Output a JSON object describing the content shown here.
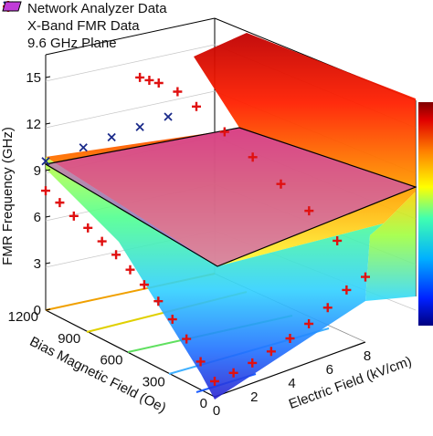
{
  "legend": {
    "network": "Network Analyzer Data",
    "xband": "X-Band FMR Data",
    "plane": "9.6 GHz Plane"
  },
  "axes": {
    "z_label": "FMR Frequency (GHz)",
    "y_label": "Bias Magnetic Field (Oe)",
    "x_label": "Electric Field (kV/cm)",
    "z_ticks": [
      "0",
      "3",
      "6",
      "9",
      "12",
      "15"
    ],
    "y_ticks": [
      "1200",
      "900",
      "600",
      "300",
      "0"
    ],
    "x_ticks": [
      "0",
      "2",
      "4",
      "6",
      "8"
    ]
  },
  "colors": {
    "network_marker": "#e01010",
    "xband_marker": "#1a2a8a",
    "plane_fill": "#c03cd8",
    "colorbar": [
      "#7a0000",
      "#e00000",
      "#ff8000",
      "#ffff00",
      "#80ff80",
      "#00c0ff",
      "#0040ff",
      "#000080"
    ]
  },
  "chart_data": {
    "type": "surface",
    "title": "",
    "xlabel": "Electric Field (kV/cm)",
    "ylabel": "Bias Magnetic Field (Oe)",
    "zlabel": "FMR Frequency (GHz)",
    "xlim": [
      0,
      8
    ],
    "ylim": [
      0,
      1200
    ],
    "zlim": [
      0,
      15
    ],
    "plane_z": 9.6,
    "grid": true,
    "legend_position": "top-left",
    "series": [
      {
        "name": "Network Analyzer Data",
        "marker": "plus",
        "points": [
          {
            "E": 0,
            "H": 0,
            "f": 1.0
          },
          {
            "E": 0,
            "H": 100,
            "f": 1.8
          },
          {
            "E": 0,
            "H": 200,
            "f": 2.8
          },
          {
            "E": 0,
            "H": 300,
            "f": 3.6
          },
          {
            "E": 0,
            "H": 400,
            "f": 4.3
          },
          {
            "E": 0,
            "H": 500,
            "f": 4.9
          },
          {
            "E": 0,
            "H": 600,
            "f": 5.4
          },
          {
            "E": 0,
            "H": 700,
            "f": 5.9
          },
          {
            "E": 0,
            "H": 800,
            "f": 6.3
          },
          {
            "E": 0,
            "H": 900,
            "f": 6.7
          },
          {
            "E": 0,
            "H": 1000,
            "f": 7.0
          },
          {
            "E": 0,
            "H": 1100,
            "f": 7.4
          },
          {
            "E": 0,
            "H": 1200,
            "f": 7.7
          },
          {
            "E": 1,
            "H": 0,
            "f": 1.1
          },
          {
            "E": 2,
            "H": 0,
            "f": 1.3
          },
          {
            "E": 3,
            "H": 0,
            "f": 1.6
          },
          {
            "E": 4,
            "H": 0,
            "f": 2.0
          },
          {
            "E": 5,
            "H": 0,
            "f": 2.5
          },
          {
            "E": 6,
            "H": 0,
            "f": 3.1
          },
          {
            "E": 7,
            "H": 0,
            "f": 3.8
          },
          {
            "E": 8,
            "H": 0,
            "f": 4.2
          },
          {
            "E": 8,
            "H": 200,
            "f": 5.6
          },
          {
            "E": 8,
            "H": 400,
            "f": 6.6
          },
          {
            "E": 8,
            "H": 600,
            "f": 7.4
          },
          {
            "E": 8,
            "H": 800,
            "f": 8.2
          },
          {
            "E": 8,
            "H": 1000,
            "f": 8.9
          },
          {
            "E": 8,
            "H": 1200,
            "f": 9.6
          },
          {
            "E": 7,
            "H": 1200,
            "f": 11.0
          },
          {
            "E": 6,
            "H": 1200,
            "f": 12.0
          },
          {
            "E": 5.5,
            "H": 1200,
            "f": 12.4
          },
          {
            "E": 5,
            "H": 1200,
            "f": 12.8
          }
        ]
      },
      {
        "name": "X-Band FMR Data",
        "marker": "cross",
        "points": [
          {
            "E": 0,
            "H": 1200,
            "f": 9.6
          },
          {
            "E": 2,
            "H": 1200,
            "f": 9.6
          },
          {
            "E": 3.5,
            "H": 1200,
            "f": 9.6
          },
          {
            "E": 5,
            "H": 1200,
            "f": 9.6
          },
          {
            "E": 6.5,
            "H": 1200,
            "f": 9.6
          }
        ]
      }
    ]
  }
}
